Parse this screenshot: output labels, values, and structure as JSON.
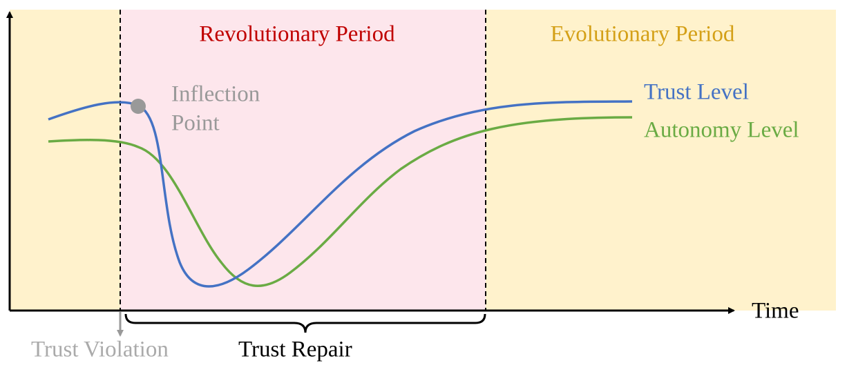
{
  "periods": {
    "revolutionary": "Revolutionary Period",
    "evolutionary": "Evolutionary Period"
  },
  "annotation": {
    "line1": "Inflection",
    "line2": "Point"
  },
  "curves": {
    "trust": "Trust Level",
    "autonomy": "Autonomy Level"
  },
  "axis": {
    "x": "Time"
  },
  "events": {
    "violation": "Trust Violation",
    "repair": "Trust Repair"
  }
}
